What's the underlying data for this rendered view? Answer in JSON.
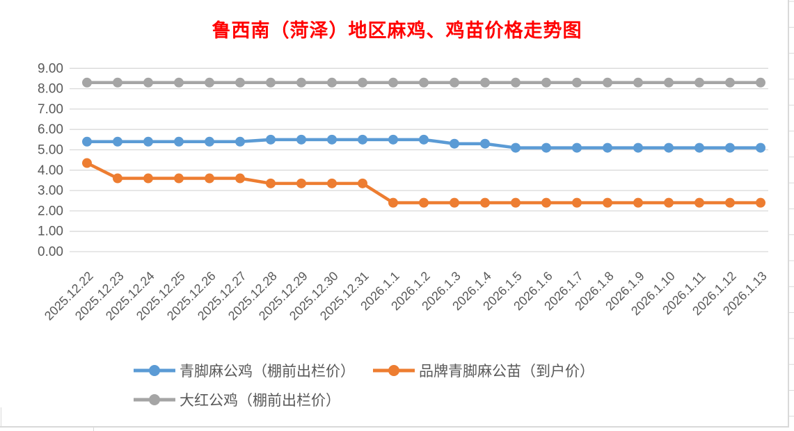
{
  "chart_data": {
    "type": "line",
    "title": "鲁西南（菏泽）地区麻鸡、鸡苗价格走势图",
    "x": [
      "2025.12.22",
      "2025.12.23",
      "2025.12.24",
      "2025.12.25",
      "2025.12.26",
      "2025.12.27",
      "2025.12.28",
      "2025.12.29",
      "2025.12.30",
      "2025.12.31",
      "2026.1.1",
      "2026.1.2",
      "2026.1.3",
      "2026.1.4",
      "2026.1.5",
      "2026.1.6",
      "2026.1.7",
      "2026.1.8",
      "2026.1.9",
      "2026.1.10",
      "2026.1.11",
      "2026.1.12",
      "2026.1.13"
    ],
    "series": [
      {
        "name": "青脚麻公鸡（棚前出栏价）",
        "color": "#5B9BD5",
        "values": [
          5.4,
          5.4,
          5.4,
          5.4,
          5.4,
          5.4,
          5.5,
          5.5,
          5.5,
          5.5,
          5.5,
          5.5,
          5.3,
          5.3,
          5.1,
          5.1,
          5.1,
          5.1,
          5.1,
          5.1,
          5.1,
          5.1,
          5.1
        ]
      },
      {
        "name": "品牌青脚麻公苗（到户价）",
        "color": "#ED7D31",
        "values": [
          4.35,
          3.6,
          3.6,
          3.6,
          3.6,
          3.6,
          3.35,
          3.35,
          3.35,
          3.35,
          2.4,
          2.4,
          2.4,
          2.4,
          2.4,
          2.4,
          2.4,
          2.4,
          2.4,
          2.4,
          2.4,
          2.4,
          2.4
        ]
      },
      {
        "name": "大红公鸡（棚前出栏价）",
        "color": "#A5A5A5",
        "values": [
          8.3,
          8.3,
          8.3,
          8.3,
          8.3,
          8.3,
          8.3,
          8.3,
          8.3,
          8.3,
          8.3,
          8.3,
          8.3,
          8.3,
          8.3,
          8.3,
          8.3,
          8.3,
          8.3,
          8.3,
          8.3,
          8.3,
          8.3
        ]
      }
    ],
    "xlabel": "",
    "ylabel": "",
    "ylim": [
      0,
      9
    ],
    "ytick_step": 1.0,
    "ytick_labels": [
      "0.00",
      "1.00",
      "2.00",
      "3.00",
      "4.00",
      "5.00",
      "6.00",
      "7.00",
      "8.00",
      "9.00"
    ],
    "grid": true,
    "legend_position": "bottom",
    "x_label_rotation": 45
  },
  "colors": {
    "title": "#FF0000",
    "axis_text": "#595959",
    "gridline": "#D9D9D9",
    "background": "#FFFFFF"
  }
}
